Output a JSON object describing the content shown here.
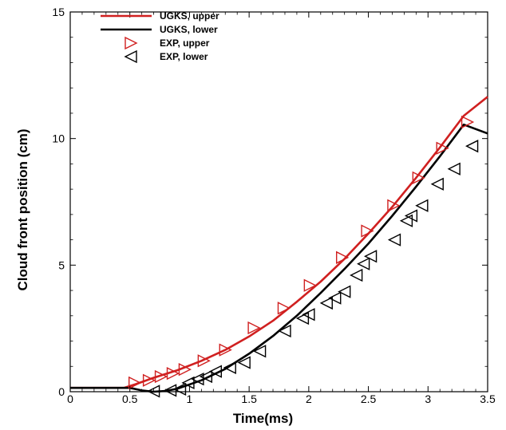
{
  "chart_data": {
    "type": "line",
    "title": "",
    "xlabel": "Time(ms)",
    "ylabel": "Cloud front position (cm)",
    "xlim": [
      0,
      3.5
    ],
    "ylim": [
      0,
      15
    ],
    "xticks": [
      0,
      0.5,
      1,
      1.5,
      2,
      2.5,
      3,
      3.5
    ],
    "xtick_labels": [
      "0",
      "0.5",
      "1",
      "1.5",
      "2",
      "2.5",
      "3",
      "3.5"
    ],
    "yticks": [
      0,
      5,
      10,
      15
    ],
    "ytick_labels": [
      "0",
      "5",
      "10",
      "15"
    ],
    "grid": false,
    "legend_position": "top-left",
    "series": [
      {
        "name": "UGKS, upper",
        "kind": "line",
        "color": "#d02020",
        "x": [
          0,
          0.45,
          0.55,
          0.7,
          0.9,
          1.1,
          1.3,
          1.5,
          1.7,
          1.9,
          2.1,
          2.3,
          2.5,
          2.7,
          2.9,
          3.1,
          3.3,
          3.5
        ],
        "y": [
          0.15,
          0.15,
          0.3,
          0.55,
          0.85,
          1.22,
          1.65,
          2.18,
          2.8,
          3.55,
          4.35,
          5.25,
          6.25,
          7.3,
          8.45,
          9.65,
          10.9,
          11.65
        ]
      },
      {
        "name": "UGKS, lower",
        "kind": "line",
        "color": "#000000",
        "x": [
          0,
          0.5,
          0.6,
          0.7,
          0.8,
          0.9,
          1.1,
          1.3,
          1.5,
          1.7,
          1.9,
          2.1,
          2.3,
          2.5,
          2.7,
          2.9,
          3.1,
          3.3,
          3.5
        ],
        "y": [
          0.15,
          0.15,
          0.05,
          0.0,
          0.03,
          0.12,
          0.45,
          0.9,
          1.5,
          2.2,
          3.0,
          3.9,
          4.85,
          5.85,
          6.95,
          8.1,
          9.3,
          10.55,
          10.2
        ]
      },
      {
        "name": "EXP, upper",
        "kind": "scatter",
        "marker": "triangle-right",
        "color": "#d02020",
        "x": [
          0.54,
          0.66,
          0.76,
          0.86,
          0.96,
          1.12,
          1.3,
          1.54,
          1.79,
          2.01,
          2.28,
          2.49,
          2.71,
          2.92,
          3.12,
          3.33
        ],
        "y": [
          0.35,
          0.45,
          0.6,
          0.72,
          0.88,
          1.22,
          1.65,
          2.52,
          3.3,
          4.2,
          5.3,
          6.35,
          7.35,
          8.45,
          9.62,
          10.65
        ]
      },
      {
        "name": "EXP, lower",
        "kind": "scatter",
        "marker": "triangle-left",
        "color": "#000000",
        "x": [
          0.7,
          0.84,
          0.92,
          0.99,
          1.07,
          1.14,
          1.22,
          1.34,
          1.46,
          1.59,
          1.8,
          1.95,
          2.0,
          2.15,
          2.22,
          2.3,
          2.4,
          2.46,
          2.52,
          2.72,
          2.82,
          2.86,
          2.95,
          3.08,
          3.22,
          3.37
        ],
        "y": [
          0.02,
          0.05,
          0.1,
          0.35,
          0.5,
          0.6,
          0.8,
          0.95,
          1.15,
          1.6,
          2.4,
          2.9,
          3.05,
          3.5,
          3.7,
          3.95,
          4.6,
          5.05,
          5.35,
          6.0,
          6.75,
          6.95,
          7.35,
          8.2,
          8.8,
          9.7
        ]
      }
    ]
  }
}
